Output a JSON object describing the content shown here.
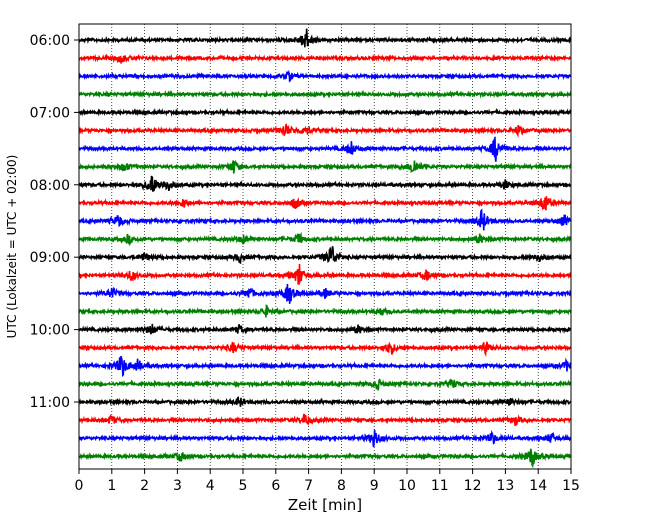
{
  "chart_data": {
    "type": "line",
    "title": "",
    "xlabel": "Zeit  [min]",
    "ylabel": "UTC (Lokalzeit = UTC + 02:00)",
    "xlim": [
      0,
      15
    ],
    "x_ticks": [
      0,
      1,
      2,
      3,
      4,
      5,
      6,
      7,
      8,
      9,
      10,
      11,
      12,
      13,
      14,
      15
    ],
    "x_tick_labels": [
      "0",
      "1",
      "2",
      "3",
      "4",
      "5",
      "6",
      "7",
      "8",
      "9",
      "10",
      "11",
      "12",
      "13",
      "14",
      "15"
    ],
    "y_tick_labels": [
      "06:00",
      "07:00",
      "08:00",
      "09:00",
      "10:00",
      "11:00"
    ],
    "y_tick_rows": [
      0,
      4,
      8,
      12,
      16,
      20
    ],
    "grid": {
      "x_dotted": true,
      "y": false
    },
    "row_colors": [
      "#000000",
      "#ff0000",
      "#0000ff",
      "#008000"
    ],
    "rows": [
      {
        "time": "06:00",
        "events": [
          [
            6.9,
            1.0
          ]
        ]
      },
      {
        "time": "06:15",
        "events": [
          [
            1.3,
            0.35
          ]
        ]
      },
      {
        "time": "06:30",
        "events": [
          [
            6.4,
            0.3
          ]
        ]
      },
      {
        "time": "06:45",
        "events": []
      },
      {
        "time": "07:00",
        "events": []
      },
      {
        "time": "07:15",
        "events": [
          [
            6.3,
            0.55
          ],
          [
            6.9,
            0.45
          ],
          [
            13.4,
            0.4
          ]
        ]
      },
      {
        "time": "07:30",
        "events": [
          [
            8.3,
            0.55
          ],
          [
            12.7,
            1.0
          ]
        ]
      },
      {
        "time": "07:45",
        "events": [
          [
            1.4,
            0.4
          ],
          [
            4.7,
            0.55
          ],
          [
            10.2,
            0.7
          ]
        ]
      },
      {
        "time": "08:00",
        "events": [
          [
            2.2,
            0.9
          ],
          [
            2.7,
            0.45
          ],
          [
            13.0,
            0.35
          ]
        ]
      },
      {
        "time": "08:15",
        "events": [
          [
            3.2,
            0.35
          ],
          [
            6.6,
            0.45
          ],
          [
            14.2,
            0.8
          ]
        ]
      },
      {
        "time": "08:30",
        "events": [
          [
            1.2,
            0.5
          ],
          [
            12.3,
            0.9
          ],
          [
            14.8,
            0.45
          ]
        ]
      },
      {
        "time": "08:45",
        "events": [
          [
            1.5,
            0.35
          ],
          [
            5.0,
            0.35
          ],
          [
            6.7,
            0.4
          ],
          [
            12.2,
            0.4
          ]
        ]
      },
      {
        "time": "09:00",
        "events": [
          [
            2.0,
            0.35
          ],
          [
            4.9,
            0.4
          ],
          [
            7.7,
            1.0
          ],
          [
            14.0,
            0.35
          ]
        ]
      },
      {
        "time": "09:15",
        "events": [
          [
            1.6,
            0.4
          ],
          [
            6.7,
            0.9
          ],
          [
            10.6,
            0.4
          ]
        ]
      },
      {
        "time": "09:30",
        "events": [
          [
            1.0,
            0.45
          ],
          [
            5.2,
            0.45
          ],
          [
            6.4,
            0.85
          ],
          [
            7.5,
            0.35
          ]
        ]
      },
      {
        "time": "09:45",
        "events": [
          [
            5.7,
            0.4
          ],
          [
            9.2,
            0.3
          ]
        ]
      },
      {
        "time": "10:00",
        "events": [
          [
            2.2,
            0.45
          ],
          [
            4.9,
            0.35
          ],
          [
            8.5,
            0.35
          ]
        ]
      },
      {
        "time": "10:15",
        "events": [
          [
            4.7,
            0.4
          ],
          [
            9.5,
            0.55
          ],
          [
            12.4,
            0.45
          ]
        ]
      },
      {
        "time": "10:30",
        "events": [
          [
            1.3,
            0.9
          ],
          [
            1.8,
            0.45
          ],
          [
            14.9,
            0.45
          ]
        ]
      },
      {
        "time": "10:45",
        "events": [
          [
            9.1,
            0.45
          ],
          [
            11.4,
            0.35
          ]
        ]
      },
      {
        "time": "11:00",
        "events": [
          [
            4.9,
            0.35
          ],
          [
            13.1,
            0.35
          ]
        ]
      },
      {
        "time": "11:15",
        "events": [
          [
            1.0,
            0.35
          ],
          [
            6.9,
            0.5
          ],
          [
            13.3,
            0.35
          ]
        ]
      },
      {
        "time": "11:30",
        "events": [
          [
            9.0,
            0.8
          ],
          [
            12.6,
            0.45
          ],
          [
            14.4,
            0.4
          ]
        ]
      },
      {
        "time": "11:45",
        "events": [
          [
            3.1,
            0.35
          ],
          [
            13.8,
            0.8
          ]
        ]
      }
    ]
  }
}
